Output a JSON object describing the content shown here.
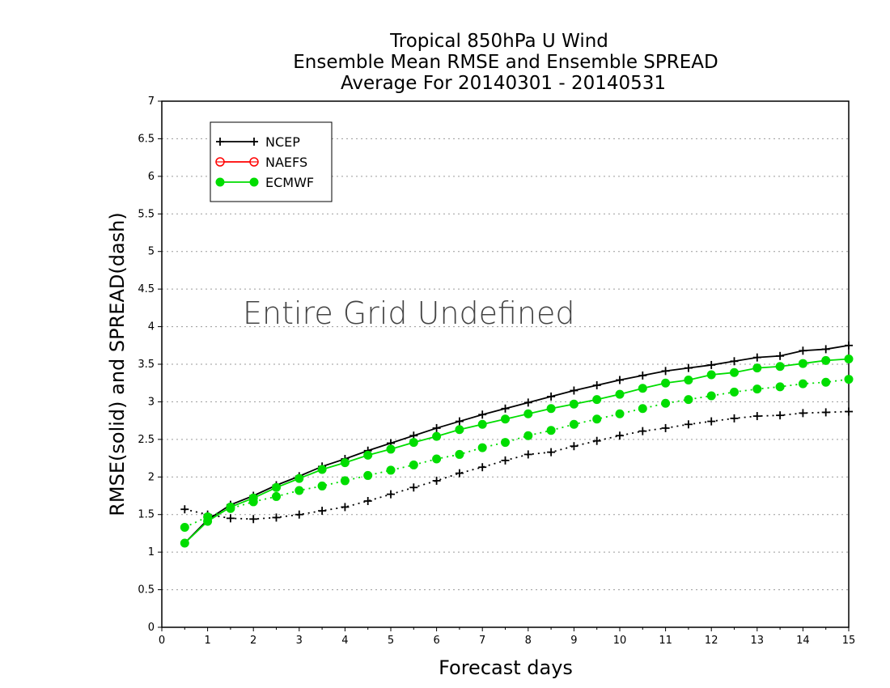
{
  "chart_data": {
    "type": "line",
    "title": [
      "Tropical 850hPa U Wind",
      "Ensemble Mean RMSE and Ensemble SPREAD",
      "Average For 20140301 - 20140531"
    ],
    "xlabel": "Forecast days",
    "ylabel": "RMSE(solid) and SPREAD(dash)",
    "xlim": [
      0,
      15
    ],
    "ylim": [
      0,
      7
    ],
    "xticks": [
      0,
      1,
      2,
      3,
      4,
      5,
      6,
      7,
      8,
      9,
      10,
      11,
      12,
      13,
      14,
      15
    ],
    "yticks": [
      0,
      0.5,
      1,
      1.5,
      2,
      2.5,
      3,
      3.5,
      4,
      4.5,
      5,
      5.5,
      6,
      6.5,
      7
    ],
    "grid": "horizontal dotted",
    "legend_position": "top-left",
    "annotation": "Entire Grid Undefined",
    "x": [
      0.5,
      1,
      1.5,
      2,
      2.5,
      3,
      3.5,
      4,
      4.5,
      5,
      5.5,
      6,
      6.5,
      7,
      7.5,
      8,
      8.5,
      9,
      9.5,
      10,
      10.5,
      11,
      11.5,
      12,
      12.5,
      13,
      13.5,
      14,
      14.5,
      15
    ],
    "series": [
      {
        "name": "NCEP",
        "marker": "plus",
        "color": "#000000",
        "rmse": [
          1.12,
          1.43,
          1.63,
          1.75,
          1.89,
          2.01,
          2.14,
          2.24,
          2.35,
          2.45,
          2.55,
          2.65,
          2.74,
          2.83,
          2.91,
          2.99,
          3.07,
          3.15,
          3.22,
          3.29,
          3.35,
          3.41,
          3.45,
          3.49,
          3.54,
          3.59,
          3.61,
          3.68,
          3.7,
          3.75
        ],
        "spread": [
          1.57,
          1.5,
          1.45,
          1.44,
          1.46,
          1.5,
          1.55,
          1.6,
          1.68,
          1.77,
          1.86,
          1.95,
          2.05,
          2.13,
          2.22,
          2.3,
          2.33,
          2.41,
          2.48,
          2.55,
          2.61,
          2.65,
          2.7,
          2.74,
          2.78,
          2.81,
          2.82,
          2.85,
          2.86,
          2.87
        ]
      },
      {
        "name": "NAEFS",
        "marker": "open-circle",
        "color": "#ff0000",
        "rmse": [],
        "spread": []
      },
      {
        "name": "ECMWF",
        "marker": "filled-circle",
        "color": "#00dd00",
        "rmse": [
          1.12,
          1.41,
          1.6,
          1.72,
          1.86,
          1.98,
          2.1,
          2.19,
          2.29,
          2.37,
          2.46,
          2.54,
          2.63,
          2.7,
          2.77,
          2.84,
          2.91,
          2.97,
          3.03,
          3.1,
          3.18,
          3.25,
          3.29,
          3.36,
          3.39,
          3.45,
          3.47,
          3.51,
          3.55,
          3.57
        ],
        "spread": [
          1.33,
          1.47,
          1.58,
          1.67,
          1.74,
          1.82,
          1.88,
          1.95,
          2.02,
          2.09,
          2.16,
          2.24,
          2.3,
          2.39,
          2.46,
          2.55,
          2.62,
          2.7,
          2.77,
          2.84,
          2.91,
          2.98,
          3.03,
          3.08,
          3.13,
          3.17,
          3.2,
          3.24,
          3.26,
          3.3
        ]
      }
    ]
  }
}
